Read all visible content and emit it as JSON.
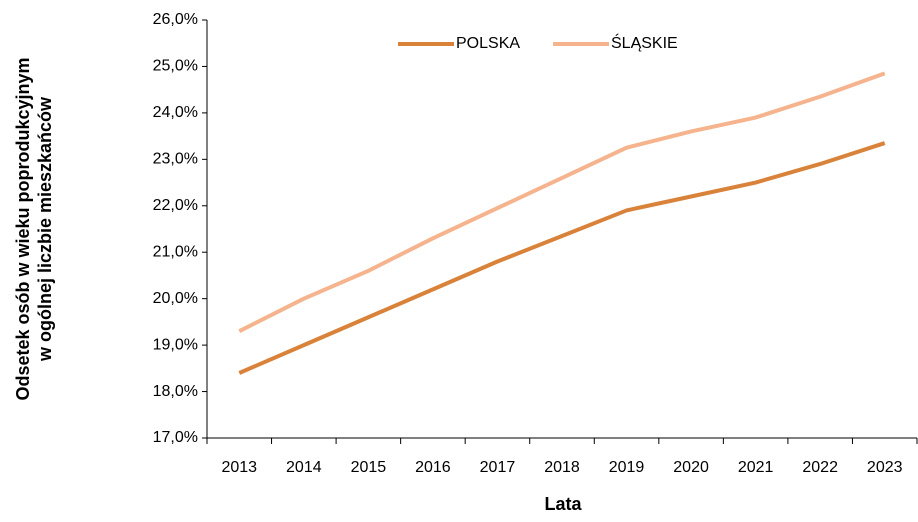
{
  "chart_data": {
    "type": "line",
    "xlabel": "Lata",
    "ylabel": [
      "Odsetek osób w wieku poprodukcyjnym",
      "w ogólnej liczbie mieszkańców"
    ],
    "categories": [
      "2013",
      "2014",
      "2015",
      "2016",
      "2017",
      "2018",
      "2019",
      "2020",
      "2021",
      "2022",
      "2023"
    ],
    "series": [
      {
        "name": "POLSKA",
        "color": "#d9823a",
        "values": [
          18.4,
          19.0,
          19.6,
          20.2,
          20.8,
          21.35,
          21.9,
          22.2,
          22.5,
          22.9,
          23.35
        ]
      },
      {
        "name": "ŚLĄSKIE",
        "color": "#f5b38e",
        "values": [
          19.3,
          20.0,
          20.6,
          21.3,
          21.95,
          22.6,
          23.25,
          23.6,
          23.9,
          24.35,
          24.85
        ]
      }
    ],
    "ylim": [
      17,
      26
    ],
    "yticks": [
      {
        "value": 17,
        "label": "17,0%"
      },
      {
        "value": 18,
        "label": "18,0%"
      },
      {
        "value": 19,
        "label": "19,0%"
      },
      {
        "value": 20,
        "label": "20,0%"
      },
      {
        "value": 21,
        "label": "21,0%"
      },
      {
        "value": 22,
        "label": "22,0%"
      },
      {
        "value": 23,
        "label": "23,0%"
      },
      {
        "value": 24,
        "label": "24,0%"
      },
      {
        "value": 25,
        "label": "25,0%"
      },
      {
        "value": 26,
        "label": "26,0%"
      }
    ],
    "legend": "top"
  }
}
